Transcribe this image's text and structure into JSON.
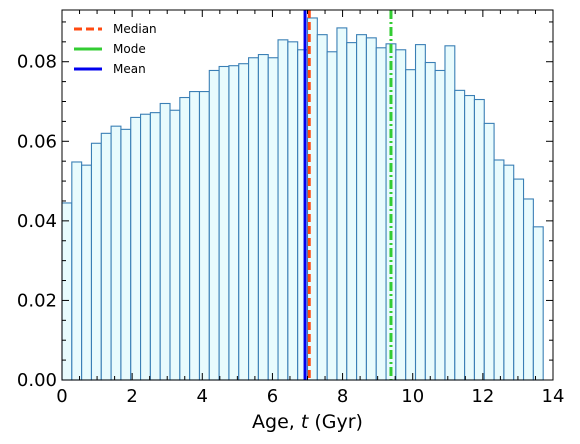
{
  "chart_data": {
    "type": "bar",
    "histogram": true,
    "title": "",
    "xlabel_prefix": "Age, ",
    "xlabel_var": "t",
    "xlabel_suffix": " (Gyr)",
    "ylabel": "",
    "xlim": [
      0,
      14
    ],
    "ylim": [
      0,
      0.093
    ],
    "xticks": [
      0,
      2,
      4,
      6,
      8,
      10,
      12,
      14
    ],
    "xtick_labels": [
      "0",
      "2",
      "4",
      "6",
      "8",
      "10",
      "12",
      "14"
    ],
    "yticks": [
      0,
      0.02,
      0.04,
      0.06,
      0.08
    ],
    "ytick_labels": [
      "0.00",
      "0.02",
      "0.04",
      "0.06",
      "0.08"
    ],
    "bin_width": 0.28,
    "bin_start": 0,
    "values": [
      0.0445,
      0.0548,
      0.054,
      0.0595,
      0.062,
      0.0638,
      0.063,
      0.066,
      0.0668,
      0.0672,
      0.0695,
      0.0678,
      0.071,
      0.0725,
      0.0725,
      0.0778,
      0.0788,
      0.079,
      0.0795,
      0.081,
      0.0818,
      0.081,
      0.0855,
      0.085,
      0.083,
      0.091,
      0.0868,
      0.0825,
      0.0885,
      0.0848,
      0.0868,
      0.086,
      0.0835,
      0.0845,
      0.083,
      0.078,
      0.0843,
      0.0798,
      0.0778,
      0.084,
      0.0728,
      0.0715,
      0.0705,
      0.0645,
      0.0553,
      0.054,
      0.0505,
      0.0455,
      0.0385
    ],
    "bar_fill": "#e8fbfd",
    "bar_edge": "#3a7fb5",
    "grid": false,
    "legend_position": "top-left",
    "lines": [
      {
        "name": "Median",
        "x": 7.05,
        "color": "#ff4a10",
        "style": "dashed"
      },
      {
        "name": "Mode",
        "x": 9.38,
        "color": "#33cc33",
        "style": "dashdot"
      },
      {
        "name": "Mean",
        "x": 6.93,
        "color": "#0000ee",
        "style": "solid"
      }
    ]
  }
}
